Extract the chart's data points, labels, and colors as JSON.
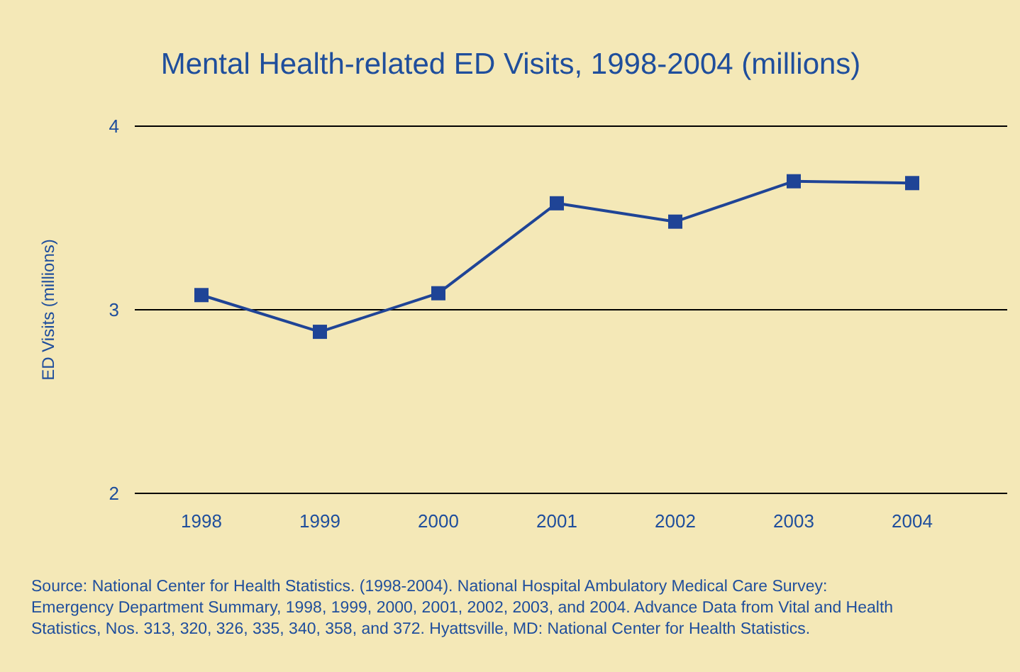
{
  "chart_data": {
    "type": "line",
    "title": "Mental Health-related ED Visits, 1998-2004 (millions)",
    "ylabel": "ED Visits (millions)",
    "categories": [
      "1998",
      "1999",
      "2000",
      "2001",
      "2002",
      "2003",
      "2004"
    ],
    "series": [
      {
        "color": "#1f4496",
        "values": [
          3.08,
          2.88,
          3.09,
          3.58,
          3.48,
          3.7,
          3.69
        ]
      }
    ],
    "ylim": [
      2,
      4
    ],
    "yticks": [
      2,
      3,
      4
    ],
    "grid": "y",
    "marker": "square",
    "line_style": "solid",
    "annotations": [
      "Source: National Center for Health Statistics. (1998-2004). National Hospital Ambulatory Medical Care Survey: Emergency Department Summary, 1998, 1999, 2000, 2001, 2002, 2003, and 2004. Advance Data from Vital and Health Statistics, Nos. 313, 320, 326, 335, 340, 358, and 372. Hyattsville, MD: National Center for Health Statistics."
    ]
  }
}
